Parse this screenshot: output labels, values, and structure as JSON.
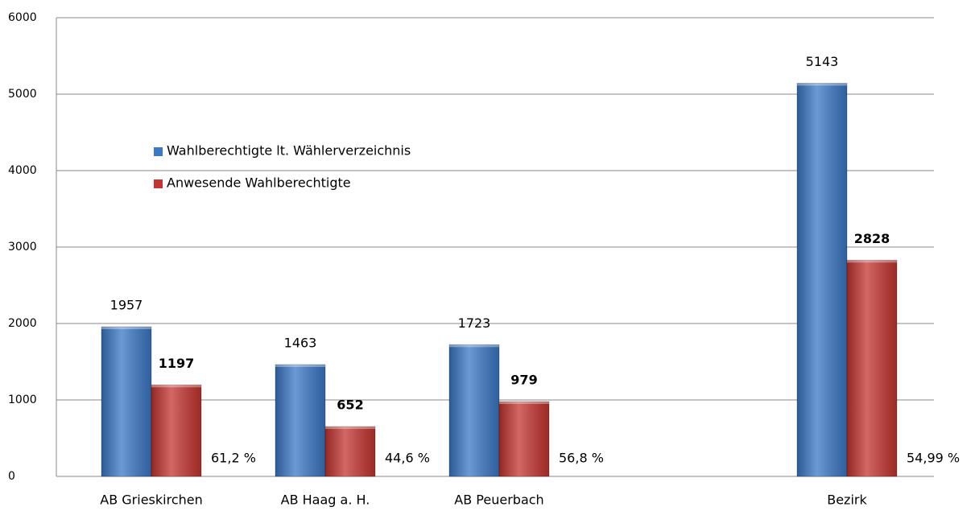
{
  "chart_data": {
    "type": "bar",
    "categories": [
      "AB Grieskirchen",
      "AB Haag a. H.",
      "AB Peuerbach",
      null,
      "Bezirk"
    ],
    "series": [
      {
        "name": "Wahlberechtigte lt. Wählerverzeichnis",
        "color": "#3b78c6",
        "values": [
          1957,
          1463,
          1723,
          null,
          5143
        ]
      },
      {
        "name": "Anwesende Wahlberechtigte",
        "color": "#c43430",
        "values": [
          1197,
          652,
          979,
          null,
          2828
        ]
      }
    ],
    "annotations": [
      "61,2 %",
      "44,6 %",
      "56,8 %",
      null,
      "54,99 %"
    ],
    "ylim": [
      0,
      6000
    ],
    "yticks": [
      0,
      1000,
      2000,
      3000,
      4000,
      5000,
      6000
    ],
    "grid": true
  }
}
